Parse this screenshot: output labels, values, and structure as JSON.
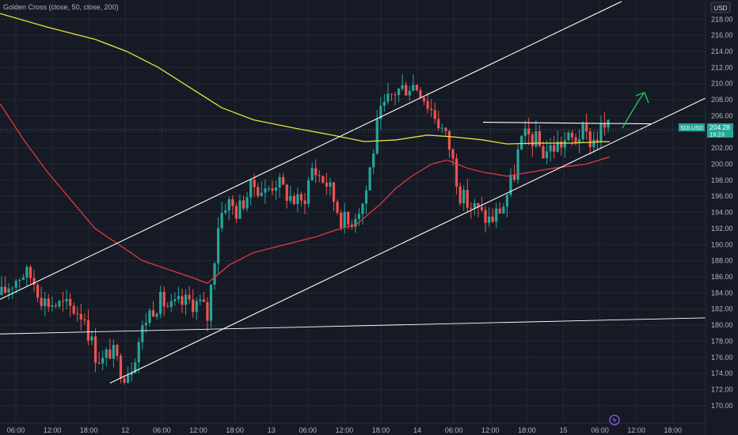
{
  "legend": {
    "text": "Golden Cross (close, 50, close, 200)"
  },
  "currency": {
    "label": "USD"
  },
  "price_badge": {
    "symbol": "SOLUSD",
    "price": "204.28",
    "countdown": "19:23"
  },
  "colors": {
    "background": "#161a25",
    "grid": "#242833",
    "bull": "#26a69a",
    "bear": "#ef5350",
    "ma50": "#e0393e",
    "ma200": "#e8e33a",
    "channel": "#ffffff",
    "arrow": "#22c55e",
    "badge": "#26a69a"
  },
  "chart_data": {
    "type": "candlestick",
    "y_ticks": [
      "170.00",
      "172.00",
      "174.00",
      "176.00",
      "178.00",
      "180.00",
      "182.00",
      "184.00",
      "186.00",
      "188.00",
      "190.00",
      "192.00",
      "194.00",
      "196.00",
      "198.00",
      "200.00",
      "202.00",
      "204.00",
      "206.00",
      "208.00",
      "210.00",
      "212.00",
      "214.00",
      "216.00",
      "218.00"
    ],
    "x_ticks": [
      "06:00",
      "12:00",
      "18:00",
      "12",
      "06:00",
      "12:00",
      "18:00",
      "13",
      "06:00",
      "12:00",
      "18:00",
      "14",
      "06:00",
      "12:00",
      "18:00",
      "15",
      "06:00",
      "12:00",
      "18:00"
    ],
    "ylim": [
      169.2,
      219.4
    ],
    "grid": true,
    "current_price": 204.28
  }
}
